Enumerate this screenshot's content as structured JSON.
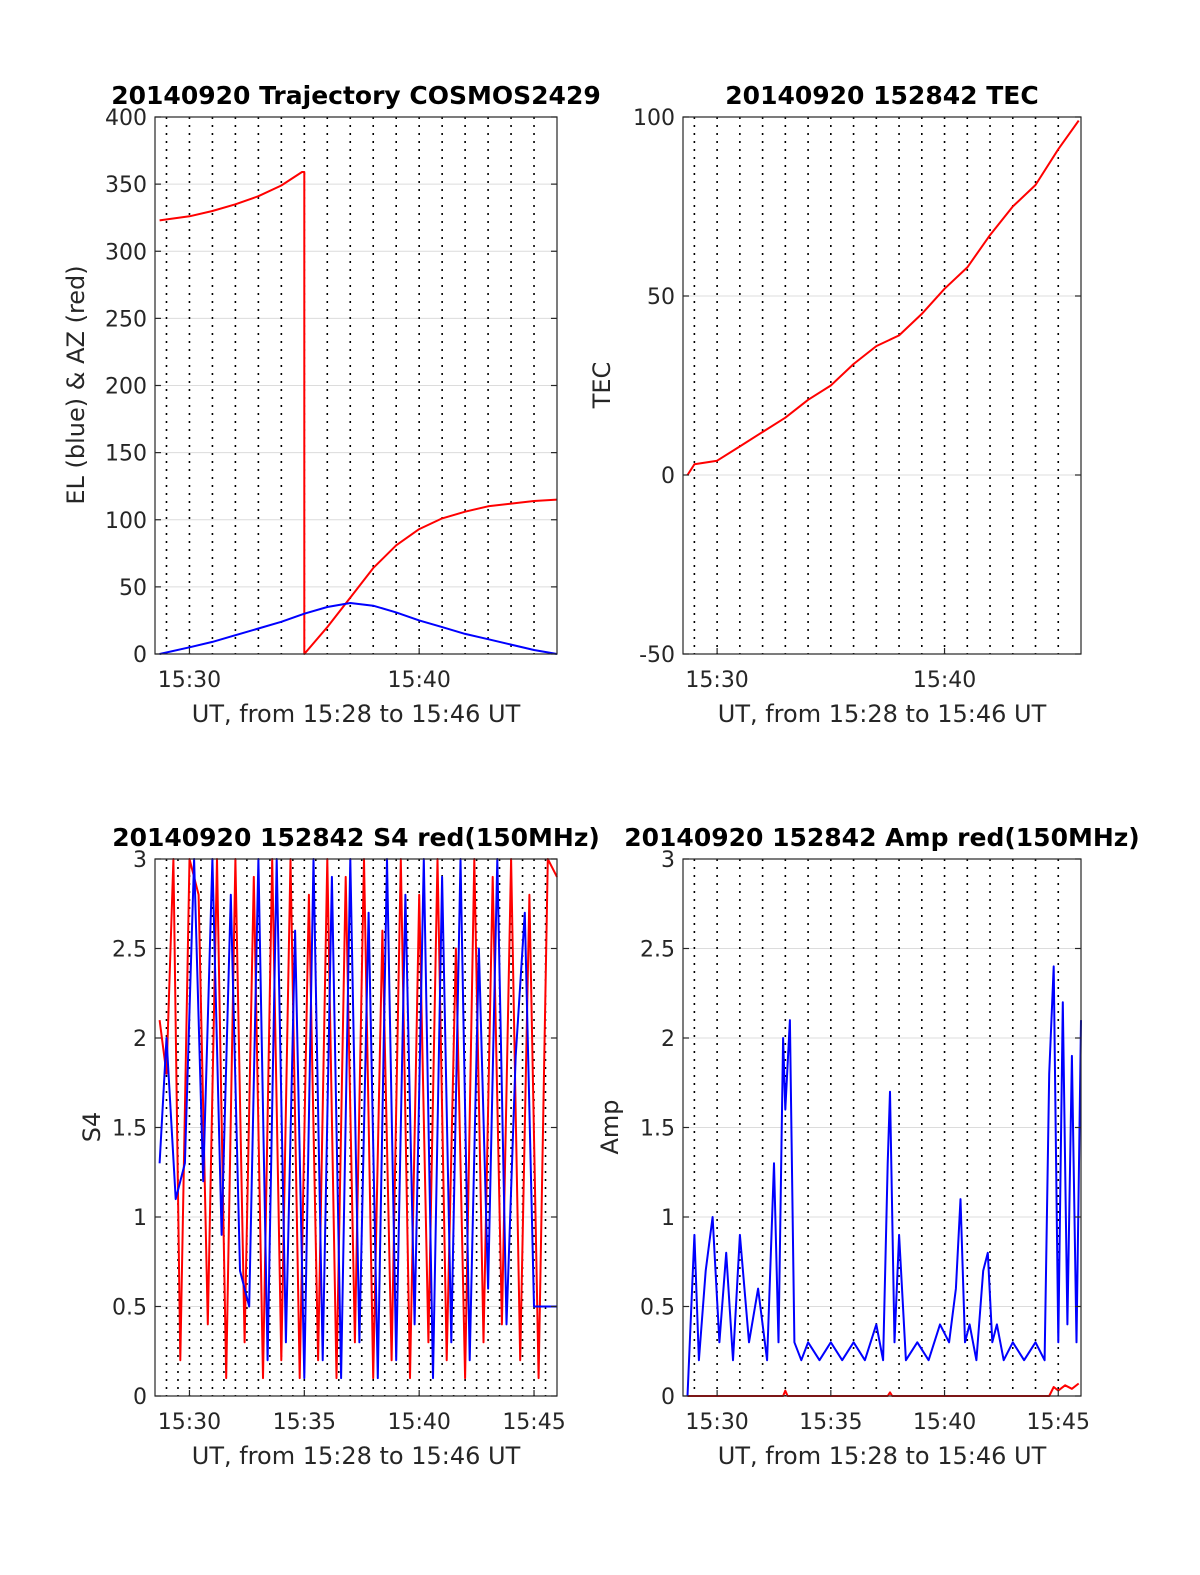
{
  "chart_data": [
    {
      "id": "traj",
      "type": "line",
      "title": "20140920 Trajectory COSMOS2429",
      "xlabel": "UT, from 15:28 to 15:46 UT",
      "ylabel": "EL (blue) & AZ (red)",
      "xlim": [
        28.5,
        46
      ],
      "ylim": [
        0,
        400
      ],
      "yticks": [
        0,
        50,
        100,
        150,
        200,
        250,
        300,
        350,
        400
      ],
      "xticks": [
        {
          "value": 30,
          "label": "15:30"
        },
        {
          "value": 40,
          "label": "15:40"
        }
      ],
      "grid_minutes": [
        29,
        30,
        31,
        32,
        33,
        34,
        35,
        36,
        37,
        38,
        39,
        40,
        41,
        42,
        43,
        44,
        45
      ],
      "series": [
        {
          "color": "#ff0000",
          "x": [
            28.7,
            30,
            31,
            32,
            33,
            34,
            34.9,
            35.0,
            35.0,
            36,
            37,
            38,
            39,
            40,
            41,
            42,
            43,
            44,
            45,
            46
          ],
          "y": [
            323,
            326,
            330,
            335,
            341,
            349,
            359,
            359,
            0,
            20,
            42,
            64,
            81,
            93,
            101,
            106,
            110,
            112,
            114,
            115
          ]
        },
        {
          "color": "#0000ff",
          "x": [
            28.7,
            30,
            31,
            32,
            33,
            34,
            35,
            36,
            37,
            38,
            39,
            40,
            41,
            42,
            43,
            44,
            45,
            46
          ],
          "y": [
            0,
            5,
            9,
            14,
            19,
            24,
            30,
            35,
            38,
            36,
            31,
            25,
            20,
            15,
            11,
            7,
            3,
            0
          ]
        }
      ]
    },
    {
      "id": "tec",
      "type": "line",
      "title": "20140920 152842 TEC",
      "xlabel": "UT, from 15:28 to 15:46 UT",
      "ylabel": "TEC",
      "xlim": [
        28.5,
        46
      ],
      "ylim": [
        -50,
        100
      ],
      "yticks": [
        -50,
        0,
        50,
        100
      ],
      "xticks": [
        {
          "value": 30,
          "label": "15:30"
        },
        {
          "value": 40,
          "label": "15:40"
        }
      ],
      "grid_minutes": [
        29,
        30,
        31,
        32,
        33,
        34,
        35,
        36,
        37,
        38,
        39,
        40,
        41,
        42,
        43,
        44,
        45
      ],
      "series": [
        {
          "color": "#ff0000",
          "x": [
            28.7,
            29,
            30,
            31,
            32,
            33,
            34,
            35,
            36,
            37,
            38,
            39,
            40,
            41,
            42,
            43,
            44,
            45,
            45.9
          ],
          "y": [
            0,
            3,
            4,
            8,
            12,
            16,
            21,
            25,
            31,
            36,
            39,
            45,
            52,
            58,
            67,
            75,
            81,
            91,
            99
          ]
        }
      ]
    },
    {
      "id": "s4",
      "type": "line",
      "title": "20140920 152842 S4 red(150MHz)",
      "xlabel": "UT, from 15:28 to 15:46 UT",
      "ylabel": "S4",
      "xlim": [
        28.5,
        46
      ],
      "ylim": [
        0,
        3
      ],
      "yticks": [
        0,
        0.5,
        1,
        1.5,
        2,
        2.5,
        3
      ],
      "xticks": [
        {
          "value": 30,
          "label": "15:30"
        },
        {
          "value": 35,
          "label": "15:35"
        },
        {
          "value": 40,
          "label": "15:40"
        },
        {
          "value": 45,
          "label": "15:45"
        }
      ],
      "grid_minutes": [
        29,
        29.5,
        30,
        30.5,
        31,
        31.5,
        32,
        32.5,
        33,
        33.5,
        34,
        34.5,
        35,
        35.5,
        36,
        36.5,
        37,
        37.5,
        38,
        38.5,
        39,
        39.5,
        40,
        40.5,
        41,
        41.5,
        42,
        42.5,
        43,
        43.5,
        44,
        44.5,
        45,
        45.5
      ],
      "series": [
        {
          "color": "#ff0000",
          "x": [
            28.7,
            29.0,
            29.3,
            29.6,
            30.0,
            30.4,
            30.8,
            31.2,
            31.6,
            32.0,
            32.4,
            32.8,
            33.2,
            33.6,
            34.0,
            34.4,
            34.8,
            35.2,
            35.6,
            36.0,
            36.4,
            36.8,
            37.2,
            37.6,
            38.0,
            38.4,
            38.8,
            39.2,
            39.6,
            40.0,
            40.4,
            40.8,
            41.2,
            41.6,
            42.0,
            42.4,
            42.8,
            43.2,
            43.6,
            44.0,
            44.4,
            44.8,
            45.2,
            45.6,
            46.0
          ],
          "y": [
            2.1,
            1.8,
            3.0,
            0.2,
            3.0,
            2.8,
            0.4,
            3.0,
            0.1,
            3.0,
            0.3,
            2.9,
            0.1,
            3.0,
            0.2,
            3.0,
            0.1,
            2.8,
            0.2,
            3.0,
            0.1,
            2.9,
            0.3,
            3.0,
            0.1,
            2.6,
            0.2,
            3.0,
            0.1,
            2.8,
            0.3,
            3.0,
            0.2,
            2.5,
            0.1,
            3.0,
            0.3,
            2.9,
            0.4,
            3.0,
            0.2,
            2.8,
            0.1,
            3.0,
            2.9
          ]
        },
        {
          "color": "#0000ff",
          "x": [
            28.7,
            29.0,
            29.4,
            29.8,
            30.2,
            30.6,
            31.0,
            31.4,
            31.8,
            32.2,
            32.6,
            33.0,
            33.4,
            33.8,
            34.2,
            34.6,
            35.0,
            35.4,
            35.8,
            36.2,
            36.6,
            37.0,
            37.4,
            37.8,
            38.2,
            38.6,
            39.0,
            39.4,
            39.8,
            40.2,
            40.6,
            41.0,
            41.4,
            41.8,
            42.2,
            42.6,
            43.0,
            43.4,
            43.8,
            44.2,
            44.6,
            45.0,
            45.4,
            45.8,
            46.0
          ],
          "y": [
            1.3,
            2.0,
            1.1,
            1.3,
            3.0,
            1.2,
            3.0,
            0.9,
            2.8,
            0.7,
            0.5,
            3.0,
            0.2,
            3.0,
            0.3,
            2.6,
            0.1,
            3.0,
            0.2,
            2.9,
            0.1,
            3.0,
            0.3,
            2.7,
            0.1,
            3.0,
            0.2,
            2.8,
            0.4,
            3.0,
            0.1,
            2.9,
            0.3,
            3.0,
            0.2,
            2.5,
            0.6,
            3.0,
            0.4,
            1.9,
            2.7,
            0.5,
            0.5,
            0.5,
            0.5
          ]
        }
      ]
    },
    {
      "id": "amp",
      "type": "line",
      "title": "20140920 152842 Amp red(150MHz)",
      "xlabel": "UT, from 15:28 to 15:46 UT",
      "ylabel": "Amp",
      "xlim": [
        28.5,
        46
      ],
      "ylim": [
        0,
        3
      ],
      "yticks": [
        0,
        0.5,
        1,
        1.5,
        2,
        2.5,
        3
      ],
      "xticks": [
        {
          "value": 30,
          "label": "15:30"
        },
        {
          "value": 35,
          "label": "15:35"
        },
        {
          "value": 40,
          "label": "15:40"
        },
        {
          "value": 45,
          "label": "15:45"
        }
      ],
      "grid_minutes": [
        29,
        30,
        31,
        32,
        33,
        34,
        35,
        36,
        37,
        38,
        39,
        40,
        41,
        42,
        43,
        44,
        45
      ],
      "series": [
        {
          "color": "#ff0000",
          "x": [
            28.7,
            32.9,
            33.0,
            33.1,
            37.5,
            37.6,
            37.7,
            44.6,
            44.8,
            45.0,
            45.3,
            45.6,
            45.9
          ],
          "y": [
            0,
            0,
            0.03,
            0,
            0,
            0.02,
            0,
            0,
            0.05,
            0.03,
            0.06,
            0.04,
            0.07
          ]
        },
        {
          "color": "#0000ff",
          "x": [
            28.7,
            28.9,
            29.0,
            29.2,
            29.5,
            29.8,
            30.1,
            30.4,
            30.7,
            31.0,
            31.4,
            31.8,
            32.2,
            32.5,
            32.7,
            32.9,
            33.0,
            33.2,
            33.4,
            33.7,
            34.0,
            34.5,
            35.0,
            35.5,
            36.0,
            36.5,
            37.0,
            37.3,
            37.5,
            37.6,
            37.8,
            38.0,
            38.3,
            38.8,
            39.3,
            39.8,
            40.2,
            40.5,
            40.7,
            40.9,
            41.1,
            41.4,
            41.7,
            41.9,
            42.1,
            42.3,
            42.6,
            43.0,
            43.5,
            44.0,
            44.4,
            44.6,
            44.8,
            45.0,
            45.2,
            45.4,
            45.6,
            45.8,
            46.0
          ],
          "y": [
            0,
            0.6,
            0.9,
            0.2,
            0.7,
            1.0,
            0.3,
            0.8,
            0.2,
            0.9,
            0.3,
            0.6,
            0.2,
            1.3,
            0.3,
            2.0,
            1.6,
            2.1,
            0.3,
            0.2,
            0.3,
            0.2,
            0.3,
            0.2,
            0.3,
            0.2,
            0.4,
            0.2,
            1.3,
            1.7,
            0.3,
            0.9,
            0.2,
            0.3,
            0.2,
            0.4,
            0.3,
            0.6,
            1.1,
            0.3,
            0.4,
            0.2,
            0.7,
            0.8,
            0.3,
            0.4,
            0.2,
            0.3,
            0.2,
            0.3,
            0.2,
            1.8,
            2.4,
            0.3,
            2.2,
            0.4,
            1.9,
            0.3,
            2.1
          ]
        }
      ]
    }
  ]
}
